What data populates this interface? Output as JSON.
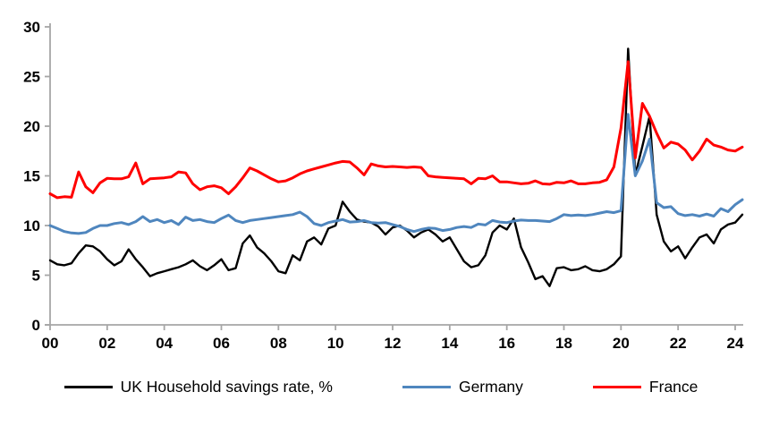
{
  "chart_data": {
    "type": "line",
    "title": "",
    "xlabel": "",
    "ylabel": "",
    "grid": false,
    "legend_position": "bottom",
    "axis_color": "#a6a6a6",
    "tick_label_color": "#000000",
    "ylim": [
      0,
      30
    ],
    "y_ticks": [
      0,
      5,
      10,
      15,
      20,
      25,
      30
    ],
    "x_axis_tick_labels": [
      "00",
      "02",
      "04",
      "06",
      "08",
      "10",
      "12",
      "14",
      "16",
      "18",
      "20",
      "22",
      "24"
    ],
    "x_axis_tick_years": [
      2000,
      2002,
      2004,
      2006,
      2008,
      2010,
      2012,
      2014,
      2016,
      2018,
      2020,
      2022,
      2024
    ],
    "x_start": 2000.0,
    "x_step": 0.25,
    "x_frequency": "quarterly",
    "series": [
      {
        "name": "UK Household savings rate, %",
        "color": "#000000",
        "values": [
          6.5,
          6.1,
          6.0,
          6.2,
          7.2,
          8.0,
          7.9,
          7.4,
          6.6,
          6.0,
          6.4,
          7.6,
          6.6,
          5.8,
          4.9,
          5.2,
          5.4,
          5.6,
          5.8,
          6.1,
          6.5,
          5.9,
          5.5,
          6.0,
          6.6,
          5.5,
          5.7,
          8.2,
          9.0,
          7.8,
          7.2,
          6.4,
          5.4,
          5.2,
          7.0,
          6.5,
          8.4,
          8.8,
          8.1,
          9.7,
          10.0,
          12.4,
          11.4,
          10.6,
          10.4,
          10.3,
          9.9,
          9.1,
          9.8,
          10.0,
          9.5,
          8.8,
          9.3,
          9.6,
          9.1,
          8.4,
          8.8,
          7.6,
          6.4,
          5.8,
          6.0,
          7.0,
          9.3,
          10.0,
          9.6,
          10.7,
          7.8,
          6.3,
          4.6,
          4.9,
          3.9,
          5.7,
          5.8,
          5.5,
          5.6,
          5.9,
          5.5,
          5.4,
          5.6,
          6.1,
          6.9,
          27.8,
          15.1,
          18.0,
          21.0,
          11.1,
          8.4,
          7.4,
          7.9,
          6.7,
          7.8,
          8.8,
          9.1,
          8.2,
          9.6,
          10.1,
          10.3,
          11.1
        ]
      },
      {
        "name": "Germany",
        "color": "#4f86be",
        "values": [
          10.0,
          9.7,
          9.4,
          9.25,
          9.2,
          9.3,
          9.7,
          10.0,
          10.0,
          10.2,
          10.3,
          10.1,
          10.4,
          10.9,
          10.4,
          10.6,
          10.3,
          10.5,
          10.1,
          10.85,
          10.5,
          10.6,
          10.4,
          10.3,
          10.7,
          11.05,
          10.5,
          10.3,
          10.5,
          10.6,
          10.7,
          10.8,
          10.9,
          11.0,
          11.1,
          11.35,
          10.9,
          10.2,
          10.0,
          10.3,
          10.45,
          10.6,
          10.35,
          10.4,
          10.5,
          10.3,
          10.25,
          10.3,
          10.1,
          9.9,
          9.6,
          9.4,
          9.6,
          9.75,
          9.7,
          9.5,
          9.6,
          9.8,
          9.9,
          9.8,
          10.15,
          10.05,
          10.5,
          10.35,
          10.3,
          10.45,
          10.55,
          10.5,
          10.5,
          10.45,
          10.4,
          10.7,
          11.1,
          11.0,
          11.05,
          11.0,
          11.1,
          11.25,
          11.4,
          11.3,
          11.5,
          21.2,
          15.0,
          16.5,
          18.7,
          12.3,
          11.8,
          11.9,
          11.2,
          11.0,
          11.1,
          10.95,
          11.15,
          10.95,
          11.7,
          11.4,
          12.1,
          12.6
        ]
      },
      {
        "name": "France",
        "color": "#ff0000",
        "values": [
          13.2,
          12.8,
          12.9,
          12.85,
          15.4,
          13.9,
          13.3,
          14.3,
          14.75,
          14.7,
          14.7,
          14.9,
          16.3,
          14.2,
          14.7,
          14.75,
          14.8,
          14.9,
          15.4,
          15.3,
          14.2,
          13.6,
          13.9,
          14.0,
          13.8,
          13.2,
          13.9,
          14.8,
          15.8,
          15.5,
          15.1,
          14.7,
          14.4,
          14.5,
          14.8,
          15.2,
          15.5,
          15.7,
          15.9,
          16.1,
          16.3,
          16.45,
          16.4,
          15.8,
          15.1,
          16.2,
          16.0,
          15.9,
          15.95,
          15.9,
          15.85,
          15.9,
          15.85,
          15.0,
          14.9,
          14.85,
          14.8,
          14.75,
          14.7,
          14.2,
          14.75,
          14.7,
          15.0,
          14.4,
          14.4,
          14.3,
          14.2,
          14.25,
          14.5,
          14.2,
          14.15,
          14.35,
          14.3,
          14.5,
          14.2,
          14.2,
          14.3,
          14.35,
          14.6,
          15.9,
          19.8,
          26.5,
          16.8,
          22.3,
          21.0,
          19.3,
          17.8,
          18.4,
          18.2,
          17.6,
          16.6,
          17.5,
          18.7,
          18.1,
          17.9,
          17.6,
          17.5,
          17.9
        ]
      }
    ]
  },
  "legend": {
    "uk_label": "UK Household savings rate, %",
    "germany_label": "Germany",
    "france_label": "France"
  }
}
